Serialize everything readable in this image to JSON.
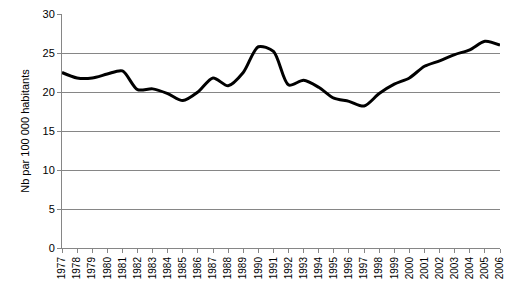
{
  "chart_data": {
    "type": "line",
    "y_label": "Nb par 100 000 habitants",
    "categories": [
      "1977",
      "1978",
      "1979",
      "1980",
      "1981",
      "1982",
      "1983",
      "1984",
      "1985",
      "1986",
      "1987",
      "1988",
      "1989",
      "1990",
      "1991",
      "1992",
      "1993",
      "1994",
      "1995",
      "1996",
      "1997",
      "1998",
      "1999",
      "2000",
      "2001",
      "2002",
      "2003",
      "2004",
      "2005",
      "2006"
    ],
    "values": [
      22.5,
      21.8,
      21.8,
      22.3,
      22.7,
      20.3,
      20.4,
      19.8,
      18.9,
      20.0,
      21.8,
      20.8,
      22.5,
      25.8,
      25.2,
      20.9,
      21.5,
      20.6,
      19.2,
      18.8,
      18.2,
      19.8,
      21.0,
      21.8,
      23.3,
      24.0,
      24.8,
      25.4,
      26.5,
      26.0
    ],
    "color": "#000000",
    "line_style": "solid",
    "ylim": [
      0,
      30
    ],
    "yticks": [
      0,
      5,
      10,
      15,
      20,
      25,
      30
    ],
    "grid": true
  }
}
